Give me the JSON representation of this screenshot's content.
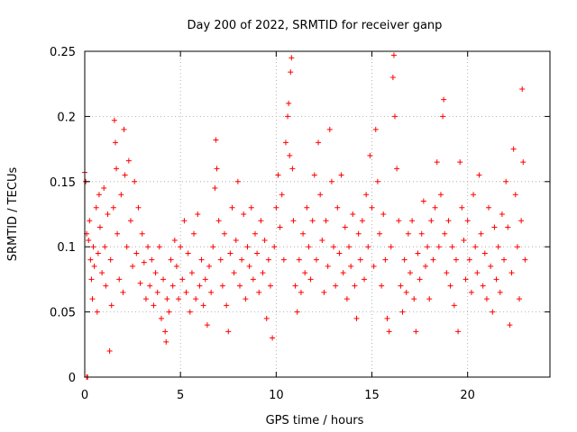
{
  "chart_data": {
    "type": "scatter",
    "title": "Day 200 of 2022, SRMTID for receiver ganp",
    "xlabel": "GPS time / hours",
    "ylabel": "SRMTID / TECUs",
    "xlim": [
      0,
      24.3
    ],
    "ylim": [
      0,
      0.25
    ],
    "xticks": [
      0,
      5,
      10,
      15,
      20
    ],
    "xtick_labels": [
      "0",
      "5",
      "10",
      "15",
      "20"
    ],
    "yticks": [
      0,
      0.05,
      0.1,
      0.15,
      0.2,
      0.25
    ],
    "ytick_labels": [
      "0",
      "0.05",
      "0.1",
      "0.15",
      "0.2",
      "0.25"
    ],
    "grid": true,
    "marker": "+",
    "color": "#ff0000",
    "series": [
      {
        "name": "SRMTID",
        "points": [
          [
            0.0,
            0.157
          ],
          [
            0.05,
            0.15
          ],
          [
            0.1,
            0.0
          ],
          [
            0.1,
            0.11
          ],
          [
            0.15,
            0.0
          ],
          [
            0.2,
            0.105
          ],
          [
            0.25,
            0.12
          ],
          [
            0.3,
            0.09
          ],
          [
            0.35,
            0.075
          ],
          [
            0.4,
            0.06
          ],
          [
            0.45,
            0.1
          ],
          [
            0.5,
            0.085
          ],
          [
            0.6,
            0.13
          ],
          [
            0.65,
            0.05
          ],
          [
            0.7,
            0.095
          ],
          [
            0.75,
            0.14
          ],
          [
            0.8,
            0.115
          ],
          [
            0.9,
            0.08
          ],
          [
            1.0,
            0.145
          ],
          [
            1.05,
            0.1
          ],
          [
            1.1,
            0.07
          ],
          [
            1.2,
            0.125
          ],
          [
            1.3,
            0.02
          ],
          [
            1.35,
            0.09
          ],
          [
            1.4,
            0.055
          ],
          [
            1.5,
            0.13
          ],
          [
            1.55,
            0.197
          ],
          [
            1.6,
            0.18
          ],
          [
            1.65,
            0.16
          ],
          [
            1.7,
            0.11
          ],
          [
            1.8,
            0.075
          ],
          [
            1.9,
            0.14
          ],
          [
            2.0,
            0.065
          ],
          [
            2.05,
            0.19
          ],
          [
            2.1,
            0.155
          ],
          [
            2.2,
            0.1
          ],
          [
            2.3,
            0.166
          ],
          [
            2.4,
            0.12
          ],
          [
            2.5,
            0.085
          ],
          [
            2.6,
            0.15
          ],
          [
            2.7,
            0.095
          ],
          [
            2.8,
            0.13
          ],
          [
            2.9,
            0.072
          ],
          [
            3.0,
            0.11
          ],
          [
            3.1,
            0.088
          ],
          [
            3.2,
            0.06
          ],
          [
            3.3,
            0.1
          ],
          [
            3.4,
            0.07
          ],
          [
            3.5,
            0.09
          ],
          [
            3.6,
            0.055
          ],
          [
            3.7,
            0.08
          ],
          [
            3.8,
            0.065
          ],
          [
            3.9,
            0.1
          ],
          [
            4.0,
            0.045
          ],
          [
            4.1,
            0.075
          ],
          [
            4.2,
            0.035
          ],
          [
            4.25,
            0.027
          ],
          [
            4.3,
            0.06
          ],
          [
            4.4,
            0.05
          ],
          [
            4.5,
            0.09
          ],
          [
            4.6,
            0.07
          ],
          [
            4.7,
            0.105
          ],
          [
            4.8,
            0.085
          ],
          [
            4.9,
            0.06
          ],
          [
            5.0,
            0.1
          ],
          [
            5.1,
            0.075
          ],
          [
            5.2,
            0.12
          ],
          [
            5.3,
            0.065
          ],
          [
            5.4,
            0.095
          ],
          [
            5.5,
            0.05
          ],
          [
            5.6,
            0.08
          ],
          [
            5.7,
            0.11
          ],
          [
            5.8,
            0.06
          ],
          [
            5.9,
            0.125
          ],
          [
            6.0,
            0.07
          ],
          [
            6.1,
            0.09
          ],
          [
            6.2,
            0.055
          ],
          [
            6.3,
            0.075
          ],
          [
            6.4,
            0.04
          ],
          [
            6.5,
            0.085
          ],
          [
            6.6,
            0.065
          ],
          [
            6.7,
            0.1
          ],
          [
            6.8,
            0.145
          ],
          [
            6.85,
            0.182
          ],
          [
            6.9,
            0.16
          ],
          [
            7.0,
            0.12
          ],
          [
            7.1,
            0.09
          ],
          [
            7.2,
            0.07
          ],
          [
            7.3,
            0.11
          ],
          [
            7.4,
            0.055
          ],
          [
            7.5,
            0.035
          ],
          [
            7.6,
            0.095
          ],
          [
            7.7,
            0.13
          ],
          [
            7.8,
            0.08
          ],
          [
            7.9,
            0.105
          ],
          [
            8.0,
            0.15
          ],
          [
            8.1,
            0.07
          ],
          [
            8.2,
            0.09
          ],
          [
            8.3,
            0.125
          ],
          [
            8.4,
            0.06
          ],
          [
            8.5,
            0.1
          ],
          [
            8.6,
            0.085
          ],
          [
            8.7,
            0.13
          ],
          [
            8.8,
            0.075
          ],
          [
            8.9,
            0.11
          ],
          [
            9.0,
            0.095
          ],
          [
            9.1,
            0.065
          ],
          [
            9.2,
            0.12
          ],
          [
            9.3,
            0.08
          ],
          [
            9.4,
            0.105
          ],
          [
            9.5,
            0.045
          ],
          [
            9.6,
            0.09
          ],
          [
            9.7,
            0.07
          ],
          [
            9.8,
            0.03
          ],
          [
            9.9,
            0.1
          ],
          [
            10.0,
            0.13
          ],
          [
            10.1,
            0.155
          ],
          [
            10.2,
            0.115
          ],
          [
            10.3,
            0.14
          ],
          [
            10.4,
            0.09
          ],
          [
            10.5,
            0.18
          ],
          [
            10.6,
            0.2
          ],
          [
            10.65,
            0.21
          ],
          [
            10.7,
            0.17
          ],
          [
            10.75,
            0.234
          ],
          [
            10.8,
            0.245
          ],
          [
            10.85,
            0.16
          ],
          [
            10.9,
            0.12
          ],
          [
            11.0,
            0.07
          ],
          [
            11.1,
            0.05
          ],
          [
            11.2,
            0.09
          ],
          [
            11.3,
            0.065
          ],
          [
            11.4,
            0.11
          ],
          [
            11.5,
            0.08
          ],
          [
            11.6,
            0.13
          ],
          [
            11.7,
            0.1
          ],
          [
            11.8,
            0.075
          ],
          [
            11.9,
            0.12
          ],
          [
            12.0,
            0.155
          ],
          [
            12.1,
            0.09
          ],
          [
            12.2,
            0.18
          ],
          [
            12.3,
            0.14
          ],
          [
            12.4,
            0.105
          ],
          [
            12.5,
            0.065
          ],
          [
            12.6,
            0.12
          ],
          [
            12.7,
            0.085
          ],
          [
            12.8,
            0.19
          ],
          [
            12.9,
            0.15
          ],
          [
            13.0,
            0.1
          ],
          [
            13.1,
            0.07
          ],
          [
            13.2,
            0.13
          ],
          [
            13.3,
            0.095
          ],
          [
            13.4,
            0.155
          ],
          [
            13.5,
            0.08
          ],
          [
            13.6,
            0.115
          ],
          [
            13.7,
            0.06
          ],
          [
            13.8,
            0.1
          ],
          [
            13.9,
            0.085
          ],
          [
            14.0,
            0.125
          ],
          [
            14.1,
            0.07
          ],
          [
            14.2,
            0.045
          ],
          [
            14.3,
            0.11
          ],
          [
            14.4,
            0.09
          ],
          [
            14.5,
            0.12
          ],
          [
            14.6,
            0.075
          ],
          [
            14.7,
            0.14
          ],
          [
            14.8,
            0.1
          ],
          [
            14.9,
            0.17
          ],
          [
            15.0,
            0.13
          ],
          [
            15.1,
            0.085
          ],
          [
            15.2,
            0.19
          ],
          [
            15.3,
            0.15
          ],
          [
            15.4,
            0.11
          ],
          [
            15.5,
            0.07
          ],
          [
            15.6,
            0.125
          ],
          [
            15.7,
            0.09
          ],
          [
            15.8,
            0.045
          ],
          [
            15.9,
            0.035
          ],
          [
            16.0,
            0.1
          ],
          [
            16.1,
            0.23
          ],
          [
            16.15,
            0.247
          ],
          [
            16.2,
            0.2
          ],
          [
            16.3,
            0.16
          ],
          [
            16.4,
            0.12
          ],
          [
            16.5,
            0.07
          ],
          [
            16.6,
            0.05
          ],
          [
            16.7,
            0.09
          ],
          [
            16.8,
            0.065
          ],
          [
            16.9,
            0.11
          ],
          [
            17.0,
            0.08
          ],
          [
            17.1,
            0.12
          ],
          [
            17.2,
            0.06
          ],
          [
            17.3,
            0.035
          ],
          [
            17.4,
            0.095
          ],
          [
            17.5,
            0.075
          ],
          [
            17.6,
            0.11
          ],
          [
            17.7,
            0.135
          ],
          [
            17.8,
            0.085
          ],
          [
            17.9,
            0.1
          ],
          [
            18.0,
            0.06
          ],
          [
            18.1,
            0.12
          ],
          [
            18.2,
            0.09
          ],
          [
            18.3,
            0.13
          ],
          [
            18.4,
            0.165
          ],
          [
            18.5,
            0.1
          ],
          [
            18.6,
            0.14
          ],
          [
            18.7,
            0.2
          ],
          [
            18.75,
            0.213
          ],
          [
            18.8,
            0.11
          ],
          [
            18.9,
            0.08
          ],
          [
            19.0,
            0.12
          ],
          [
            19.1,
            0.07
          ],
          [
            19.2,
            0.1
          ],
          [
            19.3,
            0.055
          ],
          [
            19.4,
            0.09
          ],
          [
            19.5,
            0.035
          ],
          [
            19.6,
            0.165
          ],
          [
            19.7,
            0.13
          ],
          [
            19.8,
            0.105
          ],
          [
            19.9,
            0.075
          ],
          [
            20.0,
            0.12
          ],
          [
            20.1,
            0.09
          ],
          [
            20.2,
            0.065
          ],
          [
            20.3,
            0.14
          ],
          [
            20.4,
            0.1
          ],
          [
            20.5,
            0.08
          ],
          [
            20.6,
            0.155
          ],
          [
            20.7,
            0.11
          ],
          [
            20.8,
            0.07
          ],
          [
            20.9,
            0.095
          ],
          [
            21.0,
            0.06
          ],
          [
            21.1,
            0.13
          ],
          [
            21.2,
            0.085
          ],
          [
            21.3,
            0.05
          ],
          [
            21.4,
            0.115
          ],
          [
            21.5,
            0.075
          ],
          [
            21.6,
            0.1
          ],
          [
            21.7,
            0.065
          ],
          [
            21.8,
            0.125
          ],
          [
            21.9,
            0.09
          ],
          [
            22.0,
            0.15
          ],
          [
            22.1,
            0.115
          ],
          [
            22.2,
            0.04
          ],
          [
            22.3,
            0.08
          ],
          [
            22.4,
            0.175
          ],
          [
            22.5,
            0.14
          ],
          [
            22.6,
            0.1
          ],
          [
            22.7,
            0.06
          ],
          [
            22.8,
            0.12
          ],
          [
            22.85,
            0.221
          ],
          [
            22.9,
            0.165
          ],
          [
            23.0,
            0.09
          ]
        ]
      }
    ]
  }
}
